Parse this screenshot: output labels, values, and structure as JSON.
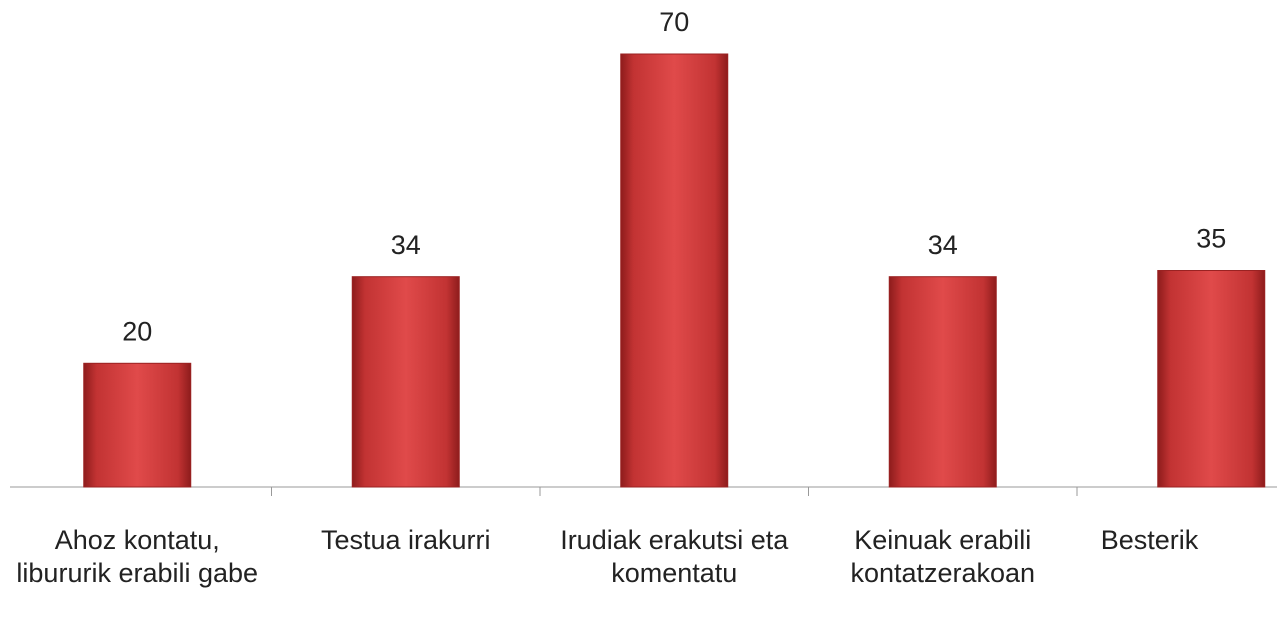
{
  "chart_data": {
    "type": "bar",
    "categories": [
      "Ahoz kontatu, libururik erabili gabe",
      "Testua irakurri",
      "Irudiak erakutsi eta komentatu",
      "Keinuak erabili kontatzerakoan",
      "Besterik"
    ],
    "values": [
      20,
      34,
      70,
      34,
      35
    ],
    "color": "#d63c3c"
  }
}
